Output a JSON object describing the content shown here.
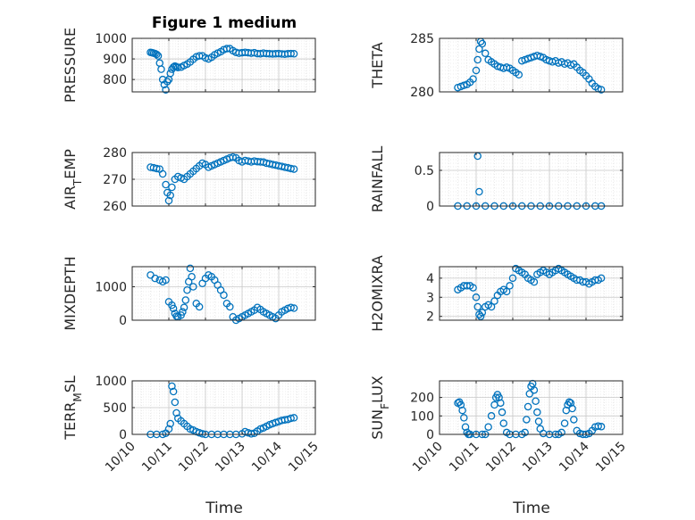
{
  "figure": {
    "title": "Figure 1 medium",
    "xlabel": "Time",
    "marker_color": "#0072BD",
    "grid_color": "#d9d9d9"
  },
  "chart_data": [
    {
      "type": "scatter",
      "ylabel": "PRESSURE",
      "ylim": [
        740,
        1000
      ],
      "yticks": [
        800,
        900,
        1000
      ],
      "xlim": [
        "10/10",
        "10/15"
      ],
      "x": [
        "10/10 12:00",
        "10/10 13:00",
        "10/10 14:00",
        "10/10 15:00",
        "10/10 16:00",
        "10/10 17:00",
        "10/10 18:00",
        "10/10 19:00",
        "10/10 20:00",
        "10/10 21:00",
        "10/10 22:00",
        "10/10 23:00",
        "10/11 00:00",
        "10/11 01:00",
        "10/11 02:00",
        "10/11 03:00",
        "10/11 04:00",
        "10/11 05:00",
        "10/11 06:00",
        "10/11 08:00",
        "10/11 10:00",
        "10/11 12:00",
        "10/11 14:00",
        "10/11 16:00",
        "10/11 18:00",
        "10/11 20:00",
        "10/11 22:00",
        "10/12 00:00",
        "10/12 02:00",
        "10/12 04:00",
        "10/12 06:00",
        "10/12 08:00",
        "10/12 10:00",
        "10/12 12:00",
        "10/12 14:00",
        "10/12 16:00",
        "10/12 18:00",
        "10/12 20:00",
        "10/12 22:00",
        "10/13 00:00",
        "10/13 02:00",
        "10/13 04:00",
        "10/13 06:00",
        "10/13 08:00",
        "10/13 10:00",
        "10/13 12:00",
        "10/13 14:00",
        "10/13 16:00",
        "10/13 18:00",
        "10/13 20:00",
        "10/13 22:00",
        "10/14 00:00",
        "10/14 02:00",
        "10/14 04:00",
        "10/14 06:00",
        "10/14 08:00",
        "10/14 10:00"
      ],
      "y": [
        932,
        930,
        928,
        926,
        922,
        915,
        880,
        850,
        800,
        775,
        750,
        790,
        800,
        830,
        850,
        860,
        865,
        862,
        858,
        860,
        868,
        875,
        885,
        898,
        910,
        915,
        915,
        905,
        900,
        908,
        920,
        928,
        935,
        945,
        950,
        950,
        940,
        932,
        928,
        930,
        932,
        930,
        928,
        930,
        926,
        925,
        928,
        926,
        925,
        924,
        925,
        926,
        924,
        923,
        925,
        926,
        925
      ]
    },
    {
      "type": "scatter",
      "ylabel": "THETA",
      "ylim": [
        280,
        285
      ],
      "yticks": [
        280,
        285
      ],
      "xlim": [
        "10/10",
        "10/15"
      ],
      "x": [
        "10/10 12:00",
        "10/10 14:00",
        "10/10 16:00",
        "10/10 18:00",
        "10/10 20:00",
        "10/10 22:00",
        "10/11 00:00",
        "10/11 01:00",
        "10/11 02:00",
        "10/11 03:00",
        "10/11 04:00",
        "10/11 06:00",
        "10/11 08:00",
        "10/11 10:00",
        "10/11 12:00",
        "10/11 14:00",
        "10/11 16:00",
        "10/11 18:00",
        "10/11 20:00",
        "10/11 22:00",
        "10/12 00:00",
        "10/12 02:00",
        "10/12 04:00",
        "10/12 06:00",
        "10/12 08:00",
        "10/12 10:00",
        "10/12 12:00",
        "10/12 14:00",
        "10/12 16:00",
        "10/12 18:00",
        "10/12 20:00",
        "10/12 22:00",
        "10/13 00:00",
        "10/13 02:00",
        "10/13 04:00",
        "10/13 06:00",
        "10/13 08:00",
        "10/13 10:00",
        "10/13 12:00",
        "10/13 14:00",
        "10/13 16:00",
        "10/13 18:00",
        "10/13 20:00",
        "10/13 22:00",
        "10/14 00:00",
        "10/14 02:00",
        "10/14 04:00",
        "10/14 06:00",
        "10/14 08:00",
        "10/14 10:00"
      ],
      "y": [
        280.4,
        280.5,
        280.6,
        280.7,
        280.9,
        281.2,
        282.0,
        283.0,
        284.0,
        284.7,
        284.5,
        283.6,
        283.0,
        282.8,
        282.6,
        282.4,
        282.3,
        282.2,
        282.3,
        282.2,
        282.0,
        281.8,
        281.6,
        282.9,
        283.0,
        283.1,
        283.2,
        283.3,
        283.4,
        283.3,
        283.2,
        283.0,
        282.9,
        282.8,
        282.9,
        282.7,
        282.8,
        282.6,
        282.7,
        282.5,
        282.6,
        282.3,
        282.0,
        281.8,
        281.5,
        281.2,
        280.8,
        280.5,
        280.3,
        280.2
      ]
    },
    {
      "type": "scatter",
      "ylabel": "AIR_TEMP",
      "ylim": [
        260,
        280
      ],
      "yticks": [
        260,
        270,
        280
      ],
      "xlim": [
        "10/10",
        "10/15"
      ],
      "x": [
        "10/10 12:00",
        "10/10 14:00",
        "10/10 16:00",
        "10/10 18:00",
        "10/10 20:00",
        "10/10 22:00",
        "10/10 23:00",
        "10/11 00:00",
        "10/11 01:00",
        "10/11 02:00",
        "10/11 04:00",
        "10/11 06:00",
        "10/11 08:00",
        "10/11 10:00",
        "10/11 12:00",
        "10/11 14:00",
        "10/11 16:00",
        "10/11 18:00",
        "10/11 20:00",
        "10/11 22:00",
        "10/12 00:00",
        "10/12 02:00",
        "10/12 04:00",
        "10/12 06:00",
        "10/12 08:00",
        "10/12 10:00",
        "10/12 12:00",
        "10/12 14:00",
        "10/12 16:00",
        "10/12 18:00",
        "10/12 20:00",
        "10/12 22:00",
        "10/13 00:00",
        "10/13 02:00",
        "10/13 04:00",
        "10/13 06:00",
        "10/13 08:00",
        "10/13 10:00",
        "10/13 12:00",
        "10/13 14:00",
        "10/13 16:00",
        "10/13 18:00",
        "10/13 20:00",
        "10/13 22:00",
        "10/14 00:00",
        "10/14 02:00",
        "10/14 04:00",
        "10/14 06:00",
        "10/14 08:00",
        "10/14 10:00"
      ],
      "y": [
        274.5,
        274.3,
        274.0,
        273.8,
        272.0,
        268.0,
        265.0,
        262.0,
        264.0,
        267.0,
        270.0,
        271.0,
        270.5,
        270.0,
        271.0,
        272.0,
        273.0,
        274.0,
        275.0,
        276.0,
        275.5,
        274.5,
        275.0,
        275.5,
        276.0,
        276.5,
        277.0,
        277.5,
        278.0,
        278.3,
        278.0,
        277.0,
        276.5,
        277.0,
        276.8,
        276.5,
        276.8,
        276.6,
        276.5,
        276.4,
        276.0,
        275.8,
        275.5,
        275.3,
        275.0,
        274.8,
        274.5,
        274.3,
        274.0,
        273.8
      ]
    },
    {
      "type": "scatter",
      "ylabel": "RAINFALL",
      "ylim": [
        0,
        0.75
      ],
      "yticks": [
        0,
        0.5
      ],
      "xlim": [
        "10/10",
        "10/15"
      ],
      "x": [
        "10/10 12:00",
        "10/10 18:00",
        "10/11 00:00",
        "10/11 01:00",
        "10/11 02:00",
        "10/11 06:00",
        "10/11 12:00",
        "10/11 18:00",
        "10/12 00:00",
        "10/12 06:00",
        "10/12 12:00",
        "10/12 18:00",
        "10/13 00:00",
        "10/13 06:00",
        "10/13 12:00",
        "10/13 18:00",
        "10/14 00:00",
        "10/14 06:00",
        "10/14 10:00"
      ],
      "y": [
        0,
        0,
        0,
        0.7,
        0.2,
        0,
        0,
        0,
        0,
        0,
        0,
        0,
        0,
        0,
        0,
        0,
        0,
        0,
        0
      ]
    },
    {
      "type": "scatter",
      "ylabel": "MIXDEPTH",
      "ylim": [
        0,
        1600
      ],
      "yticks": [
        0,
        1000
      ],
      "xlim": [
        "10/10",
        "10/15"
      ],
      "x": [
        "10/10 12:00",
        "10/10 15:00",
        "10/10 18:00",
        "10/10 20:00",
        "10/10 22:00",
        "10/11 00:00",
        "10/11 02:00",
        "10/11 03:00",
        "10/11 04:00",
        "10/11 05:00",
        "10/11 06:00",
        "10/11 08:00",
        "10/11 09:00",
        "10/11 10:00",
        "10/11 11:00",
        "10/11 12:00",
        "10/11 13:00",
        "10/11 14:00",
        "10/11 15:00",
        "10/11 16:00",
        "10/11 18:00",
        "10/11 20:00",
        "10/11 22:00",
        "10/12 00:00",
        "10/12 02:00",
        "10/12 04:00",
        "10/12 06:00",
        "10/12 08:00",
        "10/12 10:00",
        "10/12 12:00",
        "10/12 14:00",
        "10/12 16:00",
        "10/12 18:00",
        "10/12 20:00",
        "10/12 22:00",
        "10/13 00:00",
        "10/13 02:00",
        "10/13 04:00",
        "10/13 06:00",
        "10/13 08:00",
        "10/13 10:00",
        "10/13 12:00",
        "10/13 14:00",
        "10/13 16:00",
        "10/13 18:00",
        "10/13 20:00",
        "10/13 22:00",
        "10/14 00:00",
        "10/14 02:00",
        "10/14 04:00",
        "10/14 06:00",
        "10/14 08:00",
        "10/14 10:00"
      ],
      "y": [
        1350,
        1250,
        1200,
        1150,
        1200,
        550,
        450,
        350,
        200,
        120,
        100,
        150,
        250,
        380,
        600,
        900,
        1150,
        1550,
        1300,
        1000,
        500,
        400,
        1100,
        1250,
        1350,
        1300,
        1200,
        1050,
        900,
        750,
        500,
        400,
        100,
        0,
        50,
        100,
        150,
        200,
        250,
        300,
        380,
        320,
        250,
        200,
        150,
        100,
        50,
        150,
        250,
        300,
        350,
        380,
        360
      ]
    },
    {
      "type": "scatter",
      "ylabel": "H2OMIXRA",
      "ylim": [
        1.8,
        4.6
      ],
      "yticks": [
        2,
        3,
        4
      ],
      "xlim": [
        "10/10",
        "10/15"
      ],
      "x": [
        "10/10 12:00",
        "10/10 14:00",
        "10/10 16:00",
        "10/10 18:00",
        "10/10 20:00",
        "10/10 22:00",
        "10/11 00:00",
        "10/11 01:00",
        "10/11 02:00",
        "10/11 03:00",
        "10/11 04:00",
        "10/11 06:00",
        "10/11 08:00",
        "10/11 10:00",
        "10/11 12:00",
        "10/11 14:00",
        "10/11 16:00",
        "10/11 18:00",
        "10/11 20:00",
        "10/11 22:00",
        "10/12 00:00",
        "10/12 02:00",
        "10/12 04:00",
        "10/12 06:00",
        "10/12 08:00",
        "10/12 10:00",
        "10/12 12:00",
        "10/12 14:00",
        "10/12 16:00",
        "10/12 18:00",
        "10/12 20:00",
        "10/12 22:00",
        "10/13 00:00",
        "10/13 02:00",
        "10/13 04:00",
        "10/13 06:00",
        "10/13 08:00",
        "10/13 10:00",
        "10/13 12:00",
        "10/13 14:00",
        "10/13 16:00",
        "10/13 18:00",
        "10/13 20:00",
        "10/13 22:00",
        "10/14 00:00",
        "10/14 02:00",
        "10/14 04:00",
        "10/14 06:00",
        "10/14 08:00",
        "10/14 10:00"
      ],
      "y": [
        3.4,
        3.5,
        3.6,
        3.6,
        3.6,
        3.5,
        3.0,
        2.5,
        2.1,
        2.0,
        2.2,
        2.5,
        2.6,
        2.5,
        2.8,
        3.1,
        3.3,
        3.4,
        3.3,
        3.6,
        4.0,
        4.5,
        4.4,
        4.3,
        4.2,
        4.0,
        3.9,
        3.8,
        4.2,
        4.3,
        4.4,
        4.3,
        4.2,
        4.3,
        4.4,
        4.5,
        4.4,
        4.3,
        4.2,
        4.1,
        4.0,
        3.9,
        3.9,
        3.8,
        3.8,
        3.7,
        3.8,
        3.9,
        3.9,
        4.0
      ]
    },
    {
      "type": "scatter",
      "ylabel": "TERR_MSL",
      "ylim": [
        0,
        1000
      ],
      "yticks": [
        0,
        500,
        1000
      ],
      "xlim": [
        "10/10",
        "10/15"
      ],
      "x": [
        "10/10 12:00",
        "10/10 16:00",
        "10/10 20:00",
        "10/10 22:00",
        "10/11 00:00",
        "10/11 01:00",
        "10/11 02:00",
        "10/11 03:00",
        "10/11 04:00",
        "10/11 05:00",
        "10/11 06:00",
        "10/11 08:00",
        "10/11 10:00",
        "10/11 12:00",
        "10/11 14:00",
        "10/11 16:00",
        "10/11 18:00",
        "10/11 20:00",
        "10/11 22:00",
        "10/12 00:00",
        "10/12 04:00",
        "10/12 08:00",
        "10/12 12:00",
        "10/12 16:00",
        "10/12 20:00",
        "10/13 00:00",
        "10/13 02:00",
        "10/13 04:00",
        "10/13 06:00",
        "10/13 08:00",
        "10/13 10:00",
        "10/13 12:00",
        "10/13 14:00",
        "10/13 16:00",
        "10/13 18:00",
        "10/13 20:00",
        "10/13 22:00",
        "10/14 00:00",
        "10/14 02:00",
        "10/14 04:00",
        "10/14 06:00",
        "10/14 08:00",
        "10/14 10:00"
      ],
      "y": [
        0,
        0,
        0,
        20,
        100,
        200,
        900,
        800,
        600,
        400,
        300,
        250,
        200,
        150,
        100,
        80,
        50,
        30,
        10,
        0,
        0,
        0,
        0,
        0,
        0,
        10,
        50,
        30,
        10,
        20,
        60,
        100,
        120,
        150,
        180,
        200,
        220,
        240,
        260,
        270,
        280,
        300,
        310
      ]
    },
    {
      "type": "scatter",
      "ylabel": "SUN_FLUX",
      "ylim": [
        0,
        290
      ],
      "yticks": [
        0,
        100,
        200
      ],
      "xlim": [
        "10/10",
        "10/15"
      ],
      "x": [
        "10/10 12:00",
        "10/10 13:00",
        "10/10 14:00",
        "10/10 15:00",
        "10/10 16:00",
        "10/10 17:00",
        "10/10 18:00",
        "10/10 19:00",
        "10/10 20:00",
        "10/11 00:00",
        "10/11 04:00",
        "10/11 06:00",
        "10/11 08:00",
        "10/11 10:00",
        "10/11 12:00",
        "10/11 13:00",
        "10/11 14:00",
        "10/11 15:00",
        "10/11 16:00",
        "10/11 17:00",
        "10/11 18:00",
        "10/11 20:00",
        "10/11 22:00",
        "10/12 02:00",
        "10/12 06:00",
        "10/12 08:00",
        "10/12 09:00",
        "10/12 10:00",
        "10/12 11:00",
        "10/12 12:00",
        "10/12 13:00",
        "10/12 14:00",
        "10/12 15:00",
        "10/12 16:00",
        "10/12 17:00",
        "10/12 18:00",
        "10/12 20:00",
        "10/13 00:00",
        "10/13 04:00",
        "10/13 06:00",
        "10/13 08:00",
        "10/13 10:00",
        "10/13 11:00",
        "10/13 12:00",
        "10/13 13:00",
        "10/13 14:00",
        "10/13 15:00",
        "10/13 16:00",
        "10/13 18:00",
        "10/13 20:00",
        "10/13 22:00",
        "10/14 00:00",
        "10/14 02:00",
        "10/14 04:00",
        "10/14 06:00",
        "10/14 08:00",
        "10/14 10:00"
      ],
      "y": [
        170,
        175,
        160,
        130,
        90,
        40,
        10,
        0,
        0,
        0,
        0,
        0,
        40,
        100,
        160,
        200,
        215,
        200,
        170,
        120,
        60,
        10,
        0,
        0,
        0,
        10,
        80,
        150,
        220,
        260,
        275,
        240,
        180,
        120,
        70,
        30,
        5,
        0,
        0,
        0,
        10,
        60,
        130,
        160,
        175,
        170,
        140,
        80,
        20,
        5,
        0,
        0,
        5,
        20,
        40,
        45,
        42
      ]
    }
  ]
}
